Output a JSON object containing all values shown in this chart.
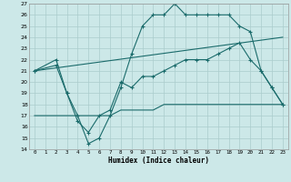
{
  "xlabel": "Humidex (Indice chaleur)",
  "bg_color": "#cce8e8",
  "grid_color": "#aacccc",
  "line_color": "#1a6b6b",
  "xlim": [
    -0.5,
    23.5
  ],
  "ylim": [
    14,
    27
  ],
  "xticks": [
    0,
    1,
    2,
    3,
    4,
    5,
    6,
    7,
    8,
    9,
    10,
    11,
    12,
    13,
    14,
    15,
    16,
    17,
    18,
    19,
    20,
    21,
    22,
    23
  ],
  "yticks": [
    14,
    15,
    16,
    17,
    18,
    19,
    20,
    21,
    22,
    23,
    24,
    25,
    26,
    27
  ],
  "line1_x": [
    0,
    2,
    3,
    4,
    5,
    6,
    7,
    8,
    9,
    10,
    11,
    12,
    13,
    14,
    15,
    16,
    17,
    18,
    19,
    20,
    21,
    22,
    23
  ],
  "line1_y": [
    21,
    22,
    19,
    17,
    14.5,
    15,
    17,
    19.5,
    22.5,
    25,
    26,
    26,
    27,
    26,
    26,
    26,
    26,
    26,
    25,
    24.5,
    21,
    19.5,
    18
  ],
  "line2_x": [
    0,
    2,
    3,
    4,
    5,
    6,
    7,
    8,
    9,
    10,
    11,
    12,
    13,
    14,
    15,
    16,
    17,
    18,
    19,
    20,
    21,
    22,
    23
  ],
  "line2_y": [
    21,
    21.5,
    19,
    16.5,
    15.5,
    17,
    17.5,
    20,
    19.5,
    20.5,
    20.5,
    21,
    21.5,
    22,
    22,
    22,
    22.5,
    23,
    23.5,
    22,
    21,
    19.5,
    18
  ],
  "line3_x": [
    0,
    23
  ],
  "line3_y": [
    21,
    24
  ],
  "line4_x": [
    0,
    3,
    4,
    5,
    6,
    7,
    8,
    9,
    10,
    11,
    12,
    13,
    14,
    15,
    16,
    17,
    18,
    22,
    23
  ],
  "line4_y": [
    17,
    17,
    17,
    17,
    17,
    17,
    17.5,
    17.5,
    17.5,
    17.5,
    18,
    18,
    18,
    18,
    18,
    18,
    18,
    18,
    18
  ]
}
